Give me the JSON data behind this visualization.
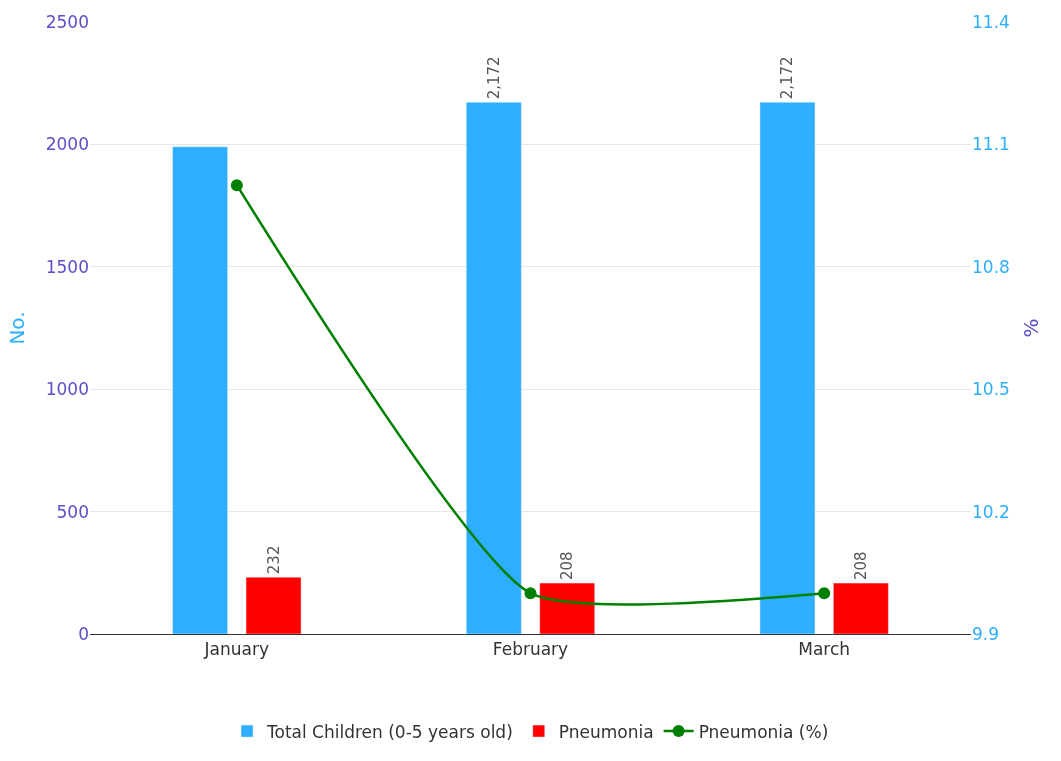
{
  "chart_data": {
    "type": "bar",
    "categories": [
      "January",
      "February",
      "March"
    ],
    "series": [
      {
        "name": "Total Children (0-5 years old)",
        "color": "#2eaeff",
        "values": [
          1990,
          2172,
          2172
        ],
        "value_labels": [
          null,
          "2,172",
          "2,172"
        ]
      },
      {
        "name": "Pneumonia",
        "color": "#ff0000",
        "values": [
          232,
          208,
          208
        ],
        "value_labels": [
          "232",
          "208",
          "208"
        ]
      },
      {
        "name": "Pneumonia (%)",
        "type": "line",
        "axis": "y2",
        "color": "#008000",
        "values": [
          11.0,
          10.0,
          10.0
        ],
        "marker": "circle",
        "line_style": "solid"
      }
    ],
    "ylabel": "No.",
    "y2label": "%",
    "ylim": [
      0,
      2500
    ],
    "yticks": [
      0,
      500,
      1000,
      1500,
      2000,
      2500
    ],
    "y2lim": [
      9.9,
      11.4
    ],
    "y2ticks": [
      9.9,
      10.2,
      10.5,
      10.8,
      11.1,
      11.4
    ],
    "grid": "y",
    "legend": "bottom"
  }
}
